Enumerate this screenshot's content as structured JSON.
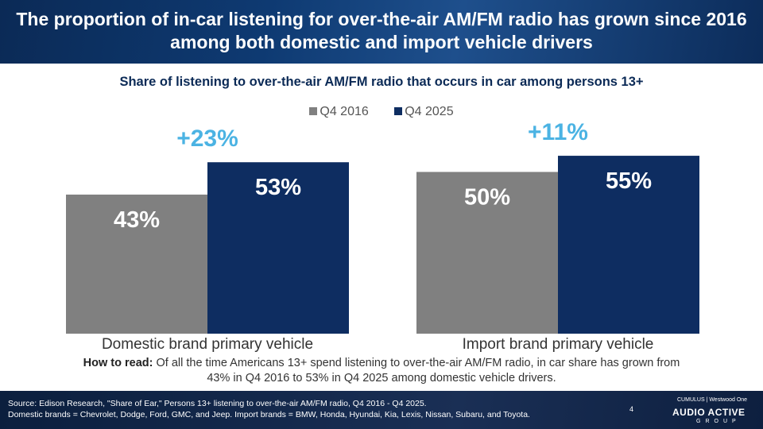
{
  "header": {
    "title": "The proportion of in-car listening for over-the-air AM/FM radio has grown since 2016 among both domestic and import vehicle drivers"
  },
  "colors": {
    "q4_2016": "#808080",
    "q4_2025": "#0e2d61",
    "growth_label": "#4bb3e3",
    "header_bg": "#0e3a72"
  },
  "chart_data": {
    "type": "bar",
    "title": "Share of listening to over-the-air AM/FM radio that occurs in car among persons 13+",
    "categories": [
      "Domestic brand primary vehicle",
      "Import brand primary vehicle"
    ],
    "series": [
      {
        "name": "Q4 2016",
        "values": [
          43,
          50
        ],
        "labels": [
          "43%",
          "50%"
        ]
      },
      {
        "name": "Q4 2025",
        "values": [
          53,
          55
        ],
        "labels": [
          "53%",
          "55%"
        ]
      }
    ],
    "annotations": [
      "+23%",
      "+11%"
    ],
    "ylim": [
      0,
      70
    ],
    "legend": "top-center",
    "xlabel": "",
    "ylabel": ""
  },
  "howto": {
    "label": "How to read:",
    "text": " Of all the time Americans 13+ spend listening to over-the-air AM/FM radio, in car share has grown from 43% in Q4 2016 to 53% in Q4 2025 among domestic vehicle drivers."
  },
  "footer": {
    "source": "Source: Edison Research, \"Share of Ear,\" Persons 13+ listening to over-the-air AM/FM radio, Q4 2016 - Q4 2025.",
    "note": "Domestic brands = Chevrolet, Dodge, Ford, GMC, and Jeep. Import brands = BMW, Honda, Hyundai, Kia, Lexis, Nissan, Subaru, and Toyota.",
    "page_number": "4",
    "brand_top": "CUMULUS | Westwood One",
    "brand_main": "AUDIO ACTIVE",
    "brand_sub": "GROUP"
  }
}
